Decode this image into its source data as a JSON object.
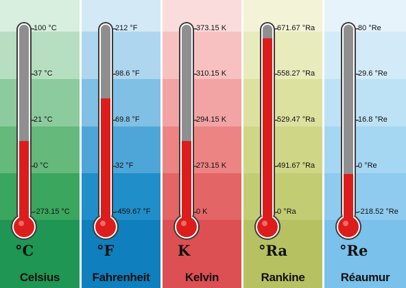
{
  "scales": [
    {
      "symbol": "°C",
      "name": "Celsius",
      "ticks": [
        "100 °C",
        "37 °C",
        "21 °C",
        "0 °C",
        "-273.15 °C"
      ],
      "level_fraction": 0.4,
      "colors": [
        "#d8eede",
        "#b5dfc0",
        "#8ccb9d",
        "#64b97b",
        "#3aa65e",
        "#1f9653"
      ]
    },
    {
      "symbol": "°F",
      "name": "Fahrenheit",
      "ticks": [
        "212 °F",
        "98.6 °F",
        "69.8 °F",
        "32 °F",
        "-459.67 °F"
      ],
      "level_fraction": 0.62,
      "colors": [
        "#d3e9f6",
        "#aed6ee",
        "#80c0e5",
        "#4ea6d8",
        "#1f8ec9",
        "#0f7fbd"
      ]
    },
    {
      "symbol": "K",
      "name": "Kelvin",
      "ticks": [
        "373.15 K",
        "310.15 K",
        "294.15 K",
        "273.15 K",
        "0 K"
      ],
      "level_fraction": 0.4,
      "colors": [
        "#fbdcdc",
        "#f7c1c1",
        "#f2a3a3",
        "#ec8484",
        "#e46565",
        "#dc4f52"
      ]
    },
    {
      "symbol": "°Ra",
      "name": "Rankine",
      "ticks": [
        "671.67 °Ra",
        "558.27 °Ra",
        "529.47 °Ra",
        "491.67 °Ra",
        "0 °Ra"
      ],
      "level_fraction": 0.93,
      "colors": [
        "#f3f3d8",
        "#e8ebbb",
        "#dce19f",
        "#cfd787",
        "#c2cc73",
        "#b6c162"
      ]
    },
    {
      "symbol": "°Re",
      "name": "Réaumur",
      "ticks": [
        "80 °Re",
        "29.6 °Re",
        "16.8 °Re",
        "0 °Re",
        "-218.52 °Re"
      ],
      "level_fraction": 0.23,
      "colors": [
        "#e6f3fb",
        "#d3ebf8",
        "#bde1f5",
        "#a5d6f2",
        "#8ecbee",
        "#7ac1eb"
      ]
    }
  ],
  "thermometer_colors": {
    "tube_outline": "#3a3a3a",
    "tube_fill": "#8f8f8f",
    "mercury": "#dd1c1c",
    "tube_border": "#ffffff"
  }
}
